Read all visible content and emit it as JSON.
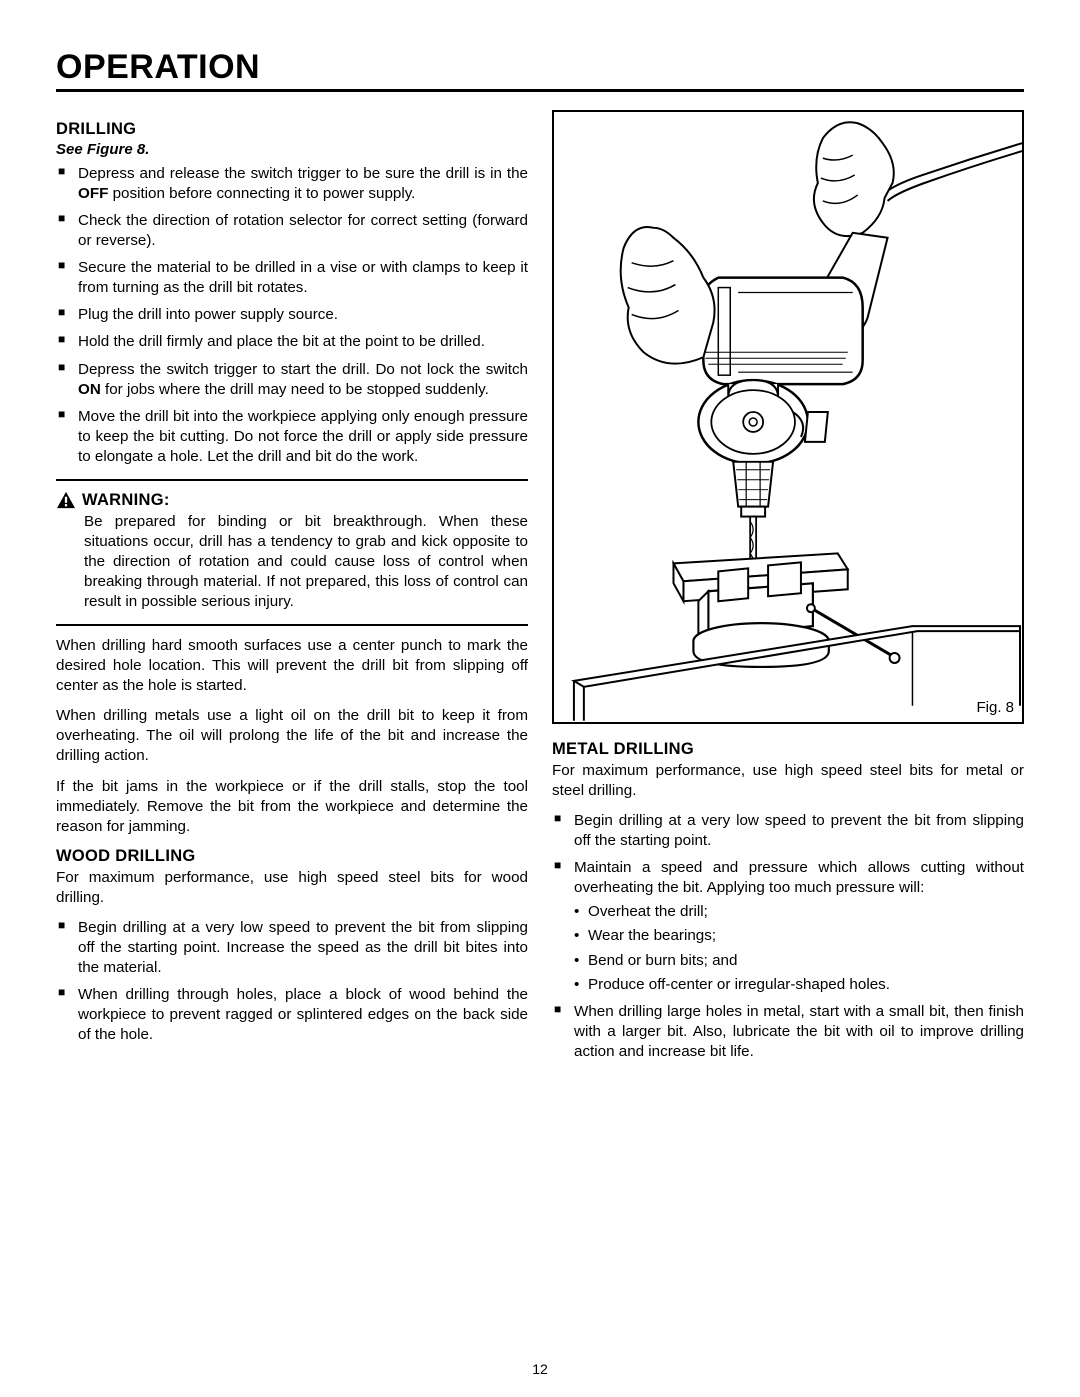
{
  "page": {
    "title": "OPERATION",
    "number": "12"
  },
  "left": {
    "drilling": {
      "heading": "DRILLING",
      "see": "See Figure 8.",
      "items": [
        {
          "pre": "Depress and release the switch trigger to be sure the drill is in the ",
          "bold": "OFF",
          "post": " position before connecting it to power supply."
        },
        {
          "pre": "Check the direction of rotation selector for correct setting (forward or reverse).",
          "bold": "",
          "post": ""
        },
        {
          "pre": "Secure the material to be drilled in a vise or with clamps to keep it from turning as the drill bit rotates.",
          "bold": "",
          "post": ""
        },
        {
          "pre": "Plug the drill into power supply source.",
          "bold": "",
          "post": ""
        },
        {
          "pre": "Hold the drill firmly and place the bit at the point to be drilled.",
          "bold": "",
          "post": ""
        },
        {
          "pre": "Depress the switch trigger to start the drill. Do not lock the switch ",
          "bold": "ON",
          "post": " for jobs where the drill may need to be stopped suddenly."
        },
        {
          "pre": "Move the drill bit into the workpiece applying only enough pressure to keep the bit cutting. Do not force the drill or apply side pressure to elongate a hole. Let the drill and bit do the work.",
          "bold": "",
          "post": ""
        }
      ]
    },
    "warning": {
      "heading": "WARNING:",
      "body": "Be prepared for binding or bit breakthrough. When these situations occur, drill has a tendency to grab and kick opposite to the direction of rotation and could cause loss of control when breaking through material. If not prepared, this loss of control can result in possible serious injury."
    },
    "paras": [
      "When drilling hard smooth surfaces use a center punch to mark the desired hole location. This will prevent the drill bit from slipping off center as the hole is started.",
      "When drilling metals use a light oil on the drill bit to keep it from overheating. The oil will prolong the life of the bit and increase the drilling action.",
      "If the bit jams in the workpiece or if the drill stalls, stop the tool immediately. Remove the bit from the workpiece and determine the reason for jamming."
    ],
    "wood": {
      "heading": "WOOD DRILLING",
      "intro": "For maximum performance, use high speed steel bits for wood drilling.",
      "items": [
        "Begin drilling at a very low speed to prevent the bit from slipping off the starting point. Increase the speed as the drill bit bites into the material.",
        "When drilling through holes, place a block of wood behind the workpiece to prevent ragged or splintered edges on the back side of the hole."
      ]
    }
  },
  "right": {
    "figure": {
      "caption": "Fig. 8"
    },
    "metal": {
      "heading": "METAL DRILLING",
      "intro": "For maximum performance, use high speed steel bits for metal or steel drilling.",
      "items": [
        {
          "text": "Begin drilling at a very low speed to prevent the bit from slipping off the starting point.",
          "sub": []
        },
        {
          "text": "Maintain a speed and pressure which allows cutting without overheating the bit. Applying too much pressure will:",
          "sub": [
            "Overheat the drill;",
            "Wear the bearings;",
            "Bend or burn bits; and",
            "Produce off-center or irregular-shaped holes."
          ]
        },
        {
          "text": "When drilling large holes in metal, start with a small bit, then finish with a larger bit. Also, lubricate the bit with oil to improve drilling action and increase bit life.",
          "sub": []
        }
      ]
    }
  }
}
